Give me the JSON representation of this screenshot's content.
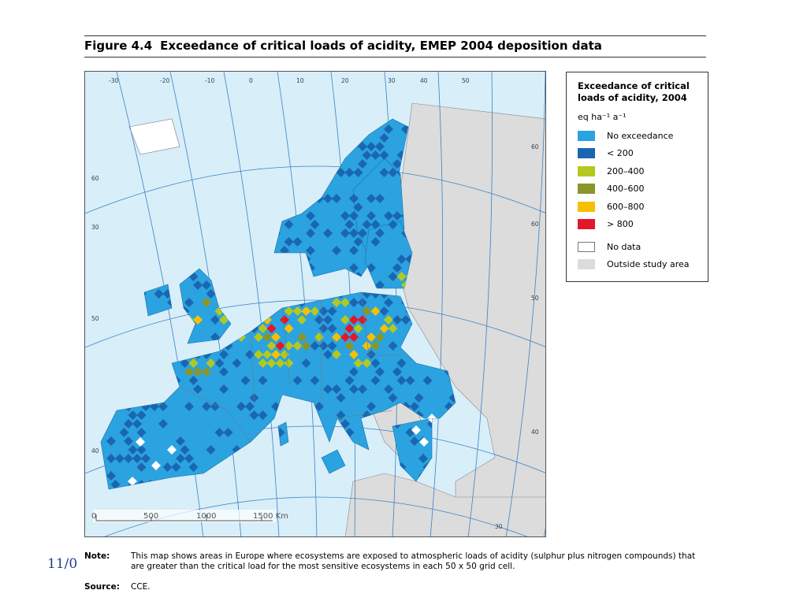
{
  "figure": {
    "number": "Figure 4.4",
    "title": "Exceedance of critical loads of acidity, EMEP 2004 deposition data"
  },
  "legend": {
    "title": "Exceedance of critical loads of acidity, 2004",
    "unit": "eq ha⁻¹ a⁻¹",
    "items": [
      {
        "label": "No exceedance",
        "color": "#2aa3e0"
      },
      {
        "label": "< 200",
        "color": "#1b66b0"
      },
      {
        "label": "200–400",
        "color": "#b5c81e"
      },
      {
        "label": "400–600",
        "color": "#8a9628"
      },
      {
        "label": "600–800",
        "color": "#f6c000"
      },
      {
        "label": "> 800",
        "color": "#e3172a"
      }
    ],
    "extra_items": [
      {
        "label": "No data",
        "color": "#ffffff"
      },
      {
        "label": "Outside study area",
        "color": "#dcdcdc"
      }
    ]
  },
  "map": {
    "scale_labels": [
      "0",
      "500",
      "1000",
      "1500 Km"
    ],
    "graticule_labels": [
      "-30",
      "-20",
      "-10",
      "0",
      "10",
      "20",
      "30",
      "40",
      "50",
      "60",
      "60",
      "50",
      "40",
      "30",
      "60",
      "50",
      "40",
      "30"
    ],
    "sea_color": "#d8eef9",
    "outside_color": "#dcdcdc"
  },
  "note": {
    "label": "Note:",
    "text": "This map shows areas in Europe where ecosystems are exposed to atmospheric loads of acidity (sulphur plus nitrogen compounds) that are greater than the critical load for the most sensitive ecosystems in each 50 x 50 grid cell."
  },
  "source": {
    "label": "Source:",
    "text": "CCE."
  },
  "slide": {
    "date_fragment": "11/0"
  }
}
